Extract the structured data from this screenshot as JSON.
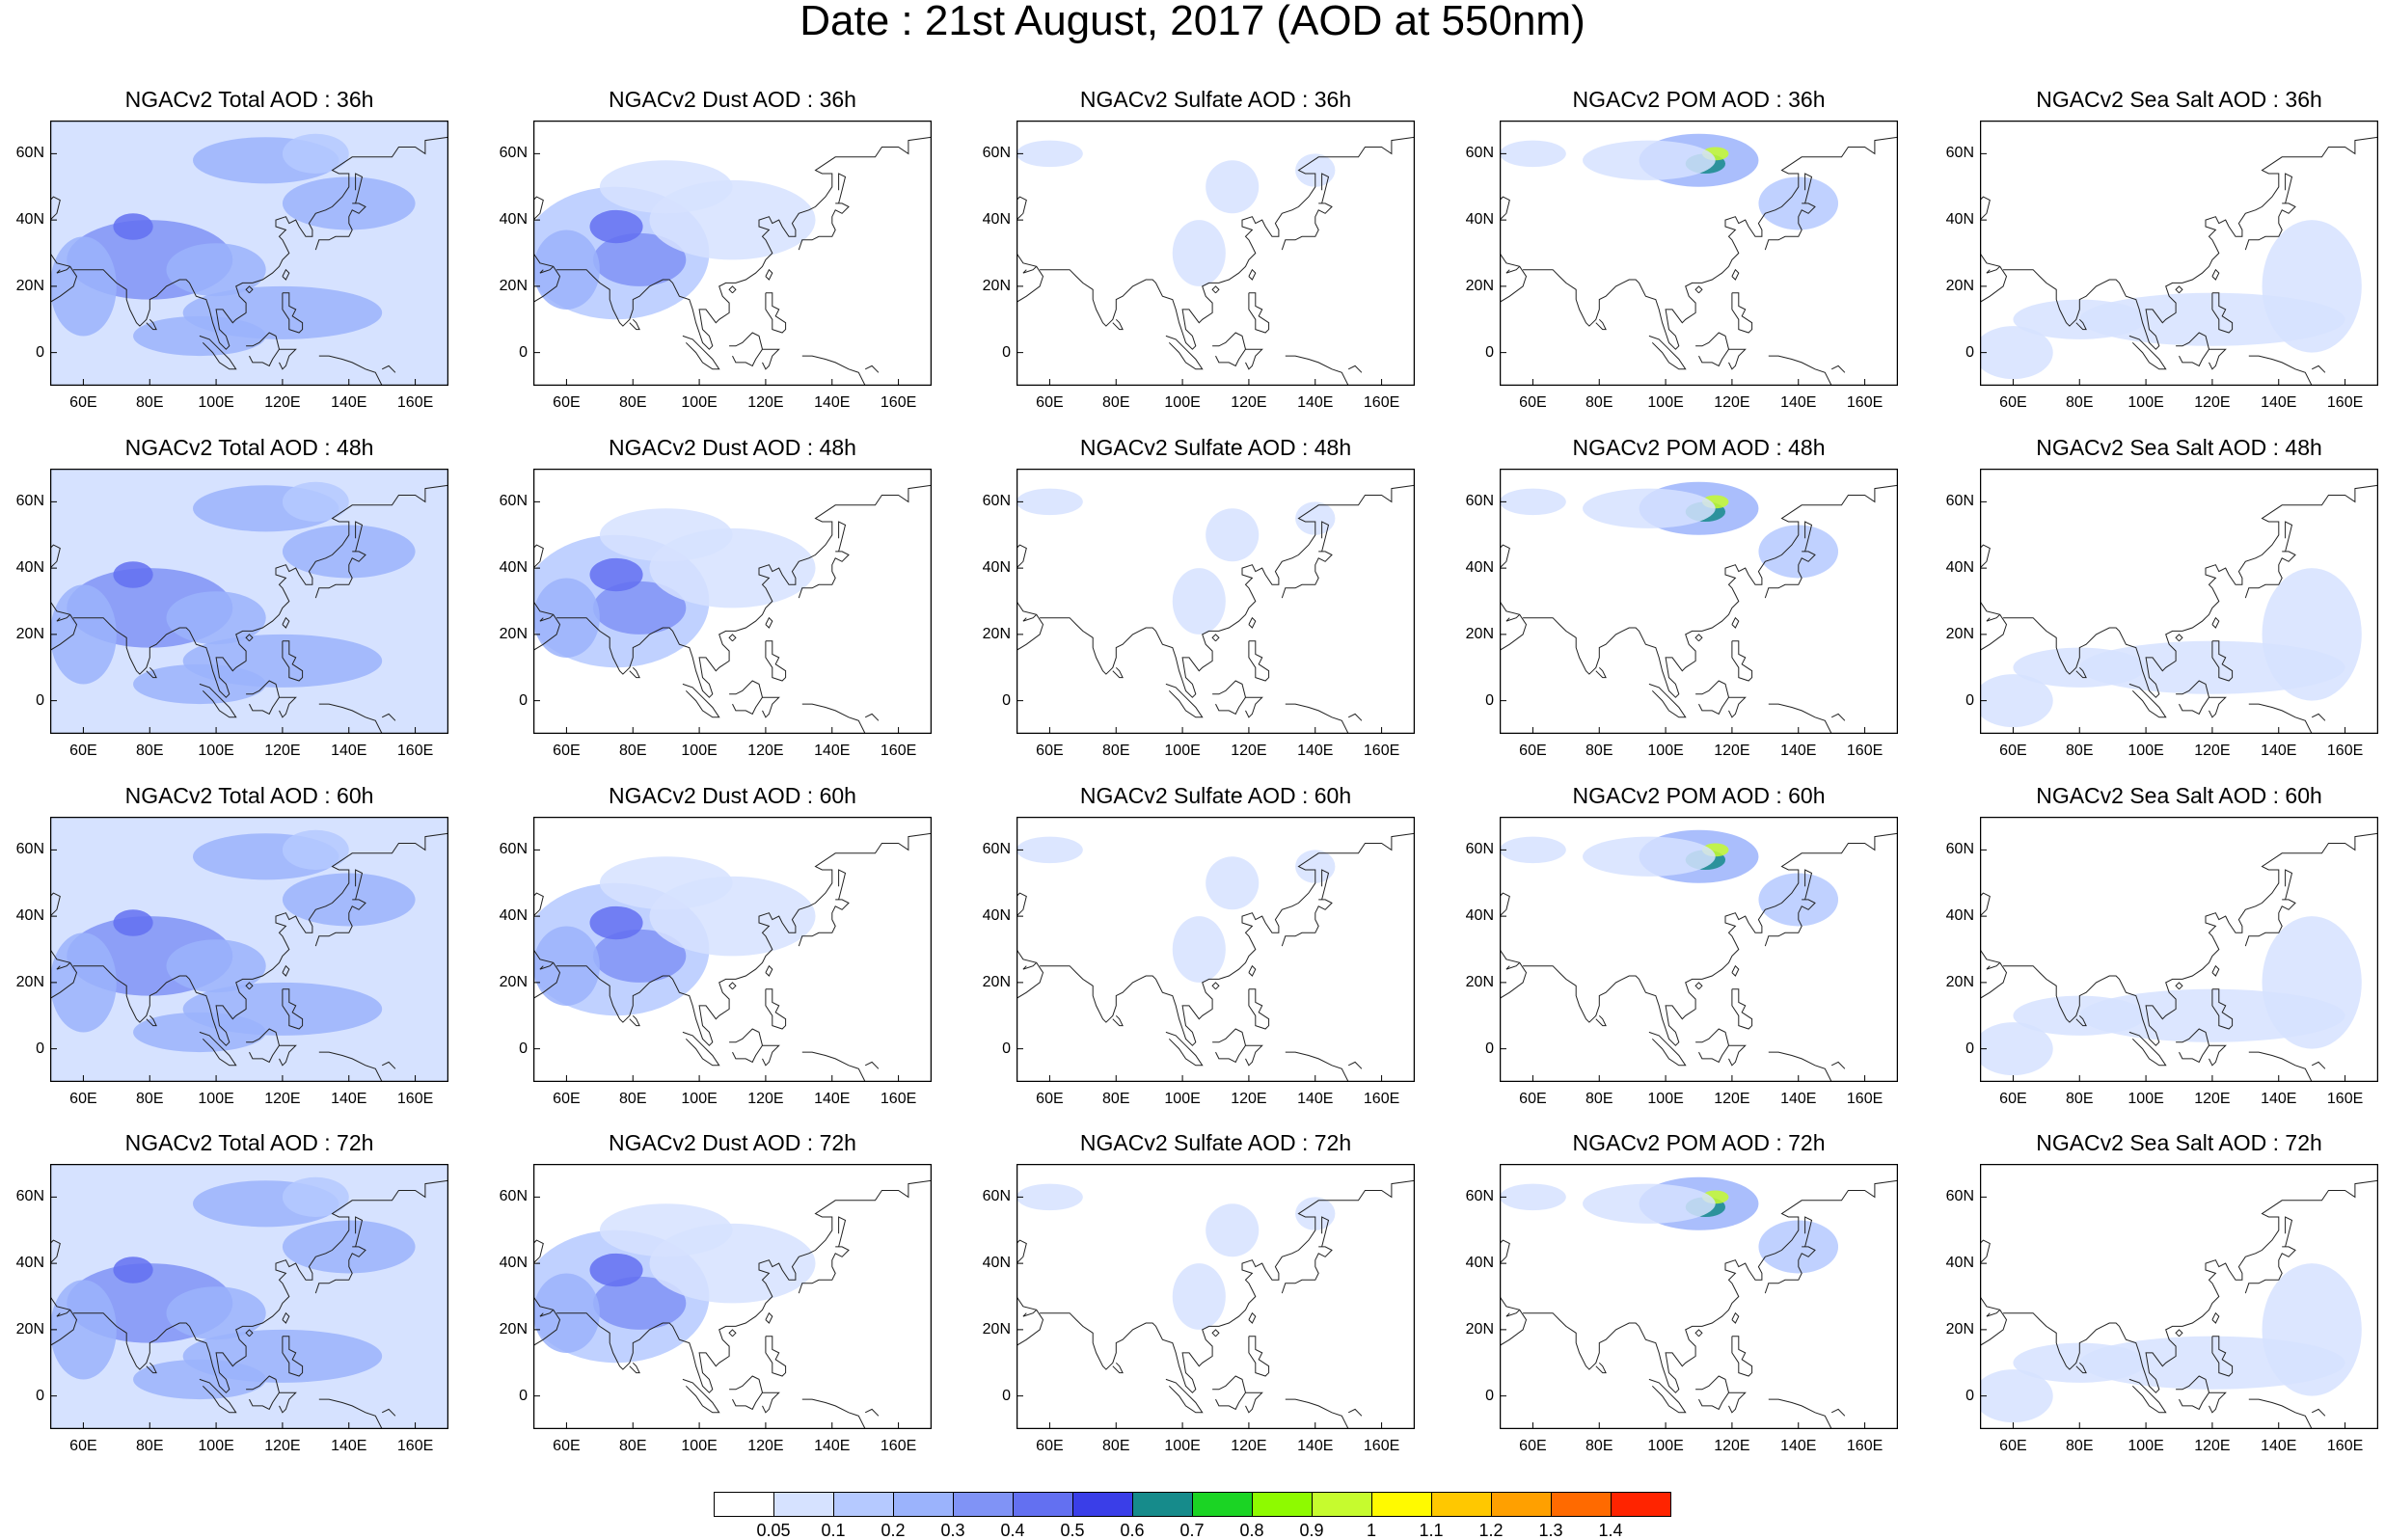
{
  "title": "Date : 21st August, 2017 (AOD at 550nm)",
  "panels": [
    [
      "NGACv2 Total AOD : 36h",
      "NGACv2 Dust AOD : 36h",
      "NGACv2 Sulfate AOD : 36h",
      "NGACv2 POM AOD : 36h",
      "NGACv2 Sea Salt AOD : 36h"
    ],
    [
      "NGACv2 Total AOD : 48h",
      "NGACv2 Dust AOD : 48h",
      "NGACv2 Sulfate AOD : 48h",
      "NGACv2 POM AOD : 48h",
      "NGACv2 Sea Salt AOD : 48h"
    ],
    [
      "NGACv2 Total AOD : 60h",
      "NGACv2 Dust AOD : 60h",
      "NGACv2 Sulfate AOD : 60h",
      "NGACv2 POM AOD : 60h",
      "NGACv2 Sea Salt AOD : 60h"
    ],
    [
      "NGACv2 Total AOD : 72h",
      "NGACv2 Dust AOD : 72h",
      "NGACv2 Sulfate AOD : 72h",
      "NGACv2 POM AOD : 72h",
      "NGACv2 Sea Salt  AOD : 72h"
    ]
  ],
  "lat_ticks": [
    "60N",
    "40N",
    "20N",
    "0"
  ],
  "lon_ticks": [
    "60E",
    "80E",
    "100E",
    "120E",
    "140E",
    "160E"
  ],
  "colorbar": {
    "labels": [
      "0.05",
      "0.1",
      "0.2",
      "0.3",
      "0.4",
      "0.5",
      "0.6",
      "0.7",
      "0.8",
      "0.9",
      "1",
      "1.1",
      "1.2",
      "1.3",
      "1.4"
    ],
    "colors": [
      "#ffffff",
      "#d6e2ff",
      "#b5c9ff",
      "#9bb3fc",
      "#8093f6",
      "#6370f1",
      "#3a3ee8",
      "#168b8b",
      "#1bd424",
      "#8efa00",
      "#c6fb2e",
      "#fffa00",
      "#ffc800",
      "#ffa000",
      "#ff6a00",
      "#ff2400"
    ]
  }
}
